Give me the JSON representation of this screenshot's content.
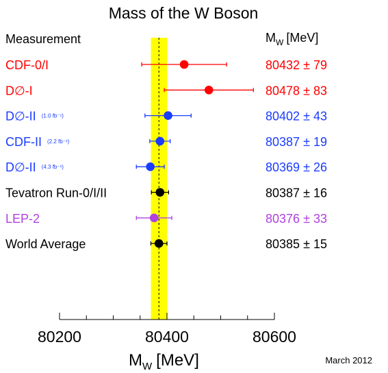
{
  "chart_data": {
    "type": "scatter",
    "title": "Mass of the W Boson",
    "column_headers": {
      "measurement": "Measurement",
      "value_main": "M",
      "value_sub": "W",
      "value_unit": "[MeV]"
    },
    "xaxis": {
      "label_main": "M",
      "label_sub": "W",
      "label_unit": "[MeV]",
      "range": [
        80200,
        80600
      ],
      "major_ticks": [
        80200,
        80400,
        80600
      ],
      "minor_step": 50
    },
    "band": {
      "center": 80385,
      "error": 15,
      "color": "#ffff00"
    },
    "note": "March 2012",
    "points": [
      {
        "label": "CDF-0/I",
        "lumi": "",
        "value": 80432,
        "error": 79,
        "color": "#ff0000",
        "value_text": "80432",
        "error_text": "79"
      },
      {
        "label": "D∅-I",
        "lumi": "",
        "value": 80478,
        "error": 83,
        "color": "#ff0000",
        "value_text": "80478",
        "error_text": "83"
      },
      {
        "label": "D∅-II",
        "lumi": "(1.0 fb⁻¹)",
        "value": 80402,
        "error": 43,
        "color": "#1a3cff",
        "value_text": "80402",
        "error_text": "43"
      },
      {
        "label": "CDF-II",
        "lumi": "(2.2 fb⁻¹)",
        "value": 80387,
        "error": 19,
        "color": "#1a3cff",
        "value_text": "80387",
        "error_text": "19"
      },
      {
        "label": "D∅-II",
        "lumi": "(4.3 fb⁻¹)",
        "value": 80369,
        "error": 26,
        "color": "#1a3cff",
        "value_text": "80369",
        "error_text": "26"
      },
      {
        "label": "Tevatron Run-0/I/II",
        "lumi": "",
        "value": 80387,
        "error": 16,
        "color": "#000000",
        "value_text": "80387",
        "error_text": "16"
      },
      {
        "label": "LEP-2",
        "lumi": "",
        "value": 80376,
        "error": 33,
        "color": "#b040e0",
        "value_text": "80376",
        "error_text": "33"
      },
      {
        "label": "World Average",
        "lumi": "",
        "value": 80385,
        "error": 15,
        "color": "#000000",
        "value_text": "80385",
        "error_text": "15"
      }
    ]
  }
}
